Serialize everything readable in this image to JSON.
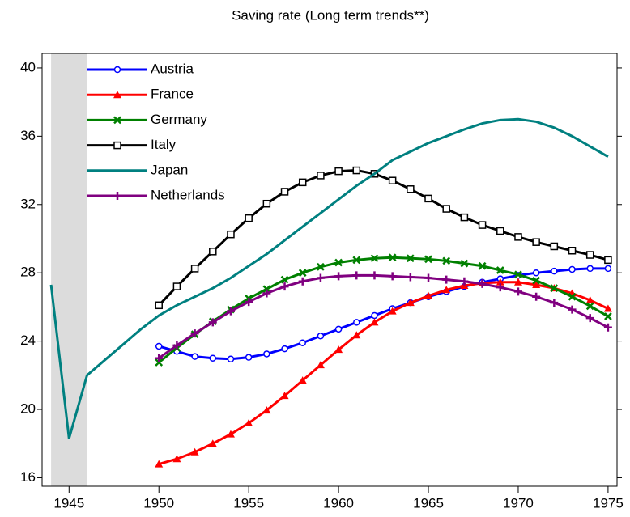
{
  "chart_data": {
    "type": "line",
    "title": "Saving rate (Long term trends**)",
    "x": [
      1944,
      1945,
      1946,
      1947,
      1948,
      1949,
      1950,
      1951,
      1952,
      1953,
      1954,
      1955,
      1956,
      1957,
      1958,
      1959,
      1960,
      1961,
      1962,
      1963,
      1964,
      1965,
      1966,
      1967,
      1968,
      1969,
      1970,
      1971,
      1972,
      1973,
      1974,
      1975
    ],
    "xlim": [
      1943.5,
      1975.5
    ],
    "xticks": [
      1945,
      1950,
      1955,
      1960,
      1965,
      1970,
      1975
    ],
    "ylim": [
      15.5,
      40.85
    ],
    "yticks": [
      16,
      20,
      24,
      28,
      32,
      36,
      40
    ],
    "shaded_span": [
      1944,
      1946
    ],
    "legend": "top-left",
    "series": [
      {
        "name": "Austria",
        "color": "#0000ff",
        "marker": "circle",
        "values": [
          null,
          null,
          null,
          null,
          null,
          null,
          23.7,
          23.4,
          23.1,
          23.0,
          22.95,
          23.05,
          23.25,
          23.55,
          23.9,
          24.3,
          24.7,
          25.1,
          25.5,
          25.9,
          26.25,
          26.6,
          26.9,
          27.2,
          27.45,
          27.65,
          27.85,
          28.0,
          28.1,
          28.2,
          28.25,
          28.25
        ]
      },
      {
        "name": "France",
        "color": "#ff0000",
        "marker": "triangle",
        "values": [
          null,
          null,
          null,
          null,
          null,
          null,
          16.8,
          17.1,
          17.5,
          18.0,
          18.55,
          19.2,
          19.95,
          20.8,
          21.7,
          22.6,
          23.5,
          24.35,
          25.1,
          25.75,
          26.25,
          26.65,
          27.0,
          27.25,
          27.4,
          27.45,
          27.45,
          27.3,
          27.1,
          26.8,
          26.4,
          25.9
        ]
      },
      {
        "name": "Germany",
        "color": "#008000",
        "marker": "x",
        "values": [
          null,
          null,
          null,
          null,
          null,
          null,
          22.75,
          23.6,
          24.4,
          25.15,
          25.85,
          26.5,
          27.05,
          27.6,
          28.0,
          28.35,
          28.6,
          28.75,
          28.85,
          28.9,
          28.85,
          28.8,
          28.7,
          28.55,
          28.4,
          28.15,
          27.9,
          27.55,
          27.1,
          26.6,
          26.05,
          25.45
        ]
      },
      {
        "name": "Italy",
        "color": "#000000",
        "marker": "square",
        "values": [
          null,
          null,
          null,
          null,
          null,
          null,
          26.1,
          27.2,
          28.25,
          29.25,
          30.25,
          31.2,
          32.05,
          32.75,
          33.3,
          33.7,
          33.95,
          34.0,
          33.8,
          33.4,
          32.9,
          32.35,
          31.75,
          31.25,
          30.8,
          30.45,
          30.1,
          29.8,
          29.55,
          29.3,
          29.05,
          28.75
        ]
      },
      {
        "name": "Japan",
        "color": "#008080",
        "marker": "none",
        "values": [
          27.3,
          18.3,
          22.0,
          22.9,
          23.8,
          24.7,
          25.5,
          26.1,
          26.6,
          27.1,
          27.7,
          28.4,
          29.1,
          29.9,
          30.7,
          31.5,
          32.3,
          33.1,
          33.8,
          34.6,
          35.1,
          35.6,
          36.0,
          36.4,
          36.75,
          36.95,
          37.0,
          36.85,
          36.5,
          36.0,
          35.4,
          34.8
        ]
      },
      {
        "name": "Netherlands",
        "color": "#800080",
        "marker": "plus",
        "values": [
          null,
          null,
          null,
          null,
          null,
          null,
          23.0,
          23.75,
          24.45,
          25.1,
          25.75,
          26.3,
          26.8,
          27.2,
          27.5,
          27.7,
          27.8,
          27.85,
          27.85,
          27.8,
          27.75,
          27.7,
          27.6,
          27.5,
          27.35,
          27.15,
          26.9,
          26.6,
          26.25,
          25.85,
          25.35,
          24.8
        ]
      }
    ]
  }
}
